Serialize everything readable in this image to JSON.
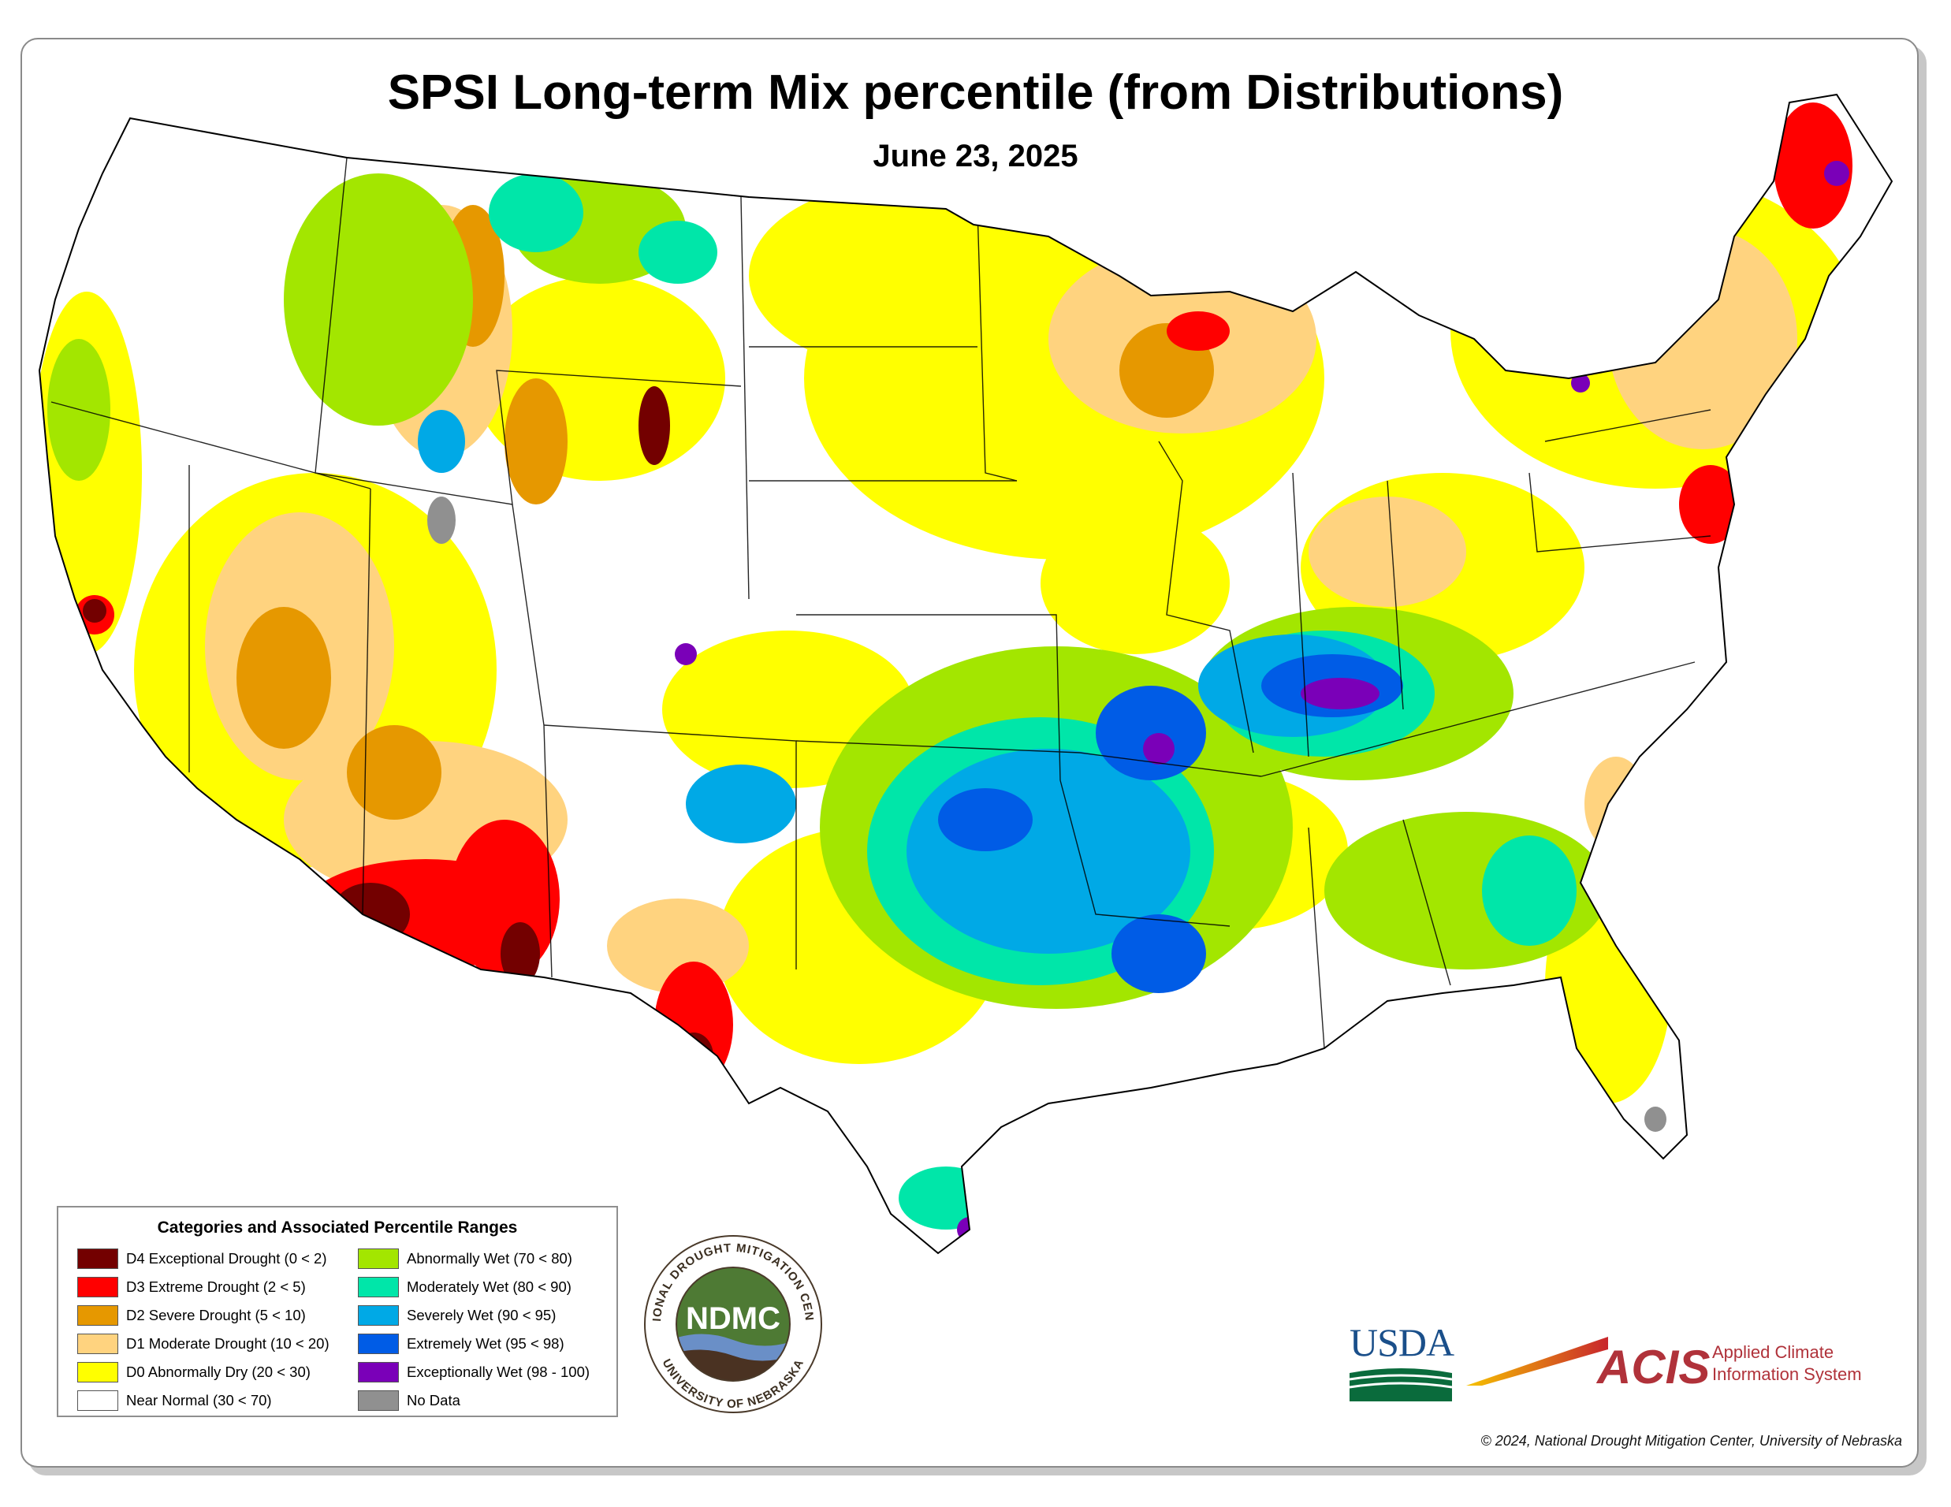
{
  "header": {
    "title": "SPSI Long-term Mix percentile (from Distributions)",
    "date": "June 23, 2025"
  },
  "legend": {
    "title": "Categories and Associated Percentile Ranges",
    "items": [
      {
        "label": "D4 Exceptional Drought (0 < 2)",
        "color": "#730000"
      },
      {
        "label": "D3 Extreme Drought (2 < 5)",
        "color": "#ff0000"
      },
      {
        "label": "D2 Severe Drought (5 < 10)",
        "color": "#e69800"
      },
      {
        "label": "D1 Moderate Drought (10 < 20)",
        "color": "#ffd37f"
      },
      {
        "label": "D0 Abnormally Dry (20 < 30)",
        "color": "#ffff00"
      },
      {
        "label": "Near Normal (30 < 70)",
        "color": "#ffffff"
      },
      {
        "label": "Abnormally Wet (70 < 80)",
        "color": "#a3e600"
      },
      {
        "label": "Moderately Wet (80 < 90)",
        "color": "#00e6a9"
      },
      {
        "label": "Severely Wet (90 < 95)",
        "color": "#00a9e6"
      },
      {
        "label": "Extremely Wet (95 < 98)",
        "color": "#005ce6"
      },
      {
        "label": "Exceptionally Wet (98 - 100)",
        "color": "#7a00b8"
      },
      {
        "label": "No Data",
        "color": "#909090"
      }
    ]
  },
  "logos": {
    "ndmc_ring_top": "NATIONAL DROUGHT MITIGATION CENTER",
    "ndmc_ring_bottom": "UNIVERSITY OF NEBRASKA",
    "ndmc_acronym": "NDMC",
    "usda": "USDA",
    "acis_acronym": "ACIS",
    "acis_line1": "Applied Climate",
    "acis_line2": "Information System"
  },
  "footer": {
    "copyright": "© 2024, National Drought Mitigation Center, University of Nebraska"
  }
}
